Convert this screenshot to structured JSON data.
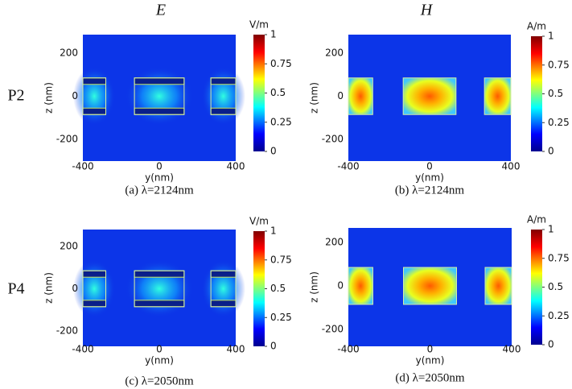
{
  "columns": [
    "E",
    "H"
  ],
  "rows": [
    "P2",
    "P4"
  ],
  "panels": [
    {
      "caption": "(a) λ=2124nm",
      "xlabel": "y(nm)",
      "ylabel": "z (nm)",
      "xticks": [
        -400,
        0,
        400
      ],
      "yticks": [
        200,
        0,
        -200
      ],
      "colorbar": {
        "unit": "V/m",
        "ticks": [
          1,
          0.75,
          0.5,
          0.25,
          0
        ]
      }
    },
    {
      "caption": "(b) λ=2124nm",
      "xlabel": "y(nm)",
      "ylabel": "z (nm)",
      "xticks": [
        -400,
        0,
        400
      ],
      "yticks": [
        200,
        0,
        -200
      ],
      "colorbar": {
        "unit": "A/m",
        "ticks": [
          1,
          0.75,
          0.5,
          0.25,
          0
        ]
      }
    },
    {
      "caption": "(c) λ=2050nm",
      "xlabel": "y(nm)",
      "ylabel": "z (nm)",
      "xticks": [
        -400,
        0,
        400
      ],
      "yticks": [
        200,
        0,
        -200
      ],
      "colorbar": {
        "unit": "V/m",
        "ticks": [
          1,
          0.75,
          0.5,
          0.25,
          0
        ]
      }
    },
    {
      "caption": "(d) λ=2050nm",
      "xlabel": "y(nm)",
      "ylabel": "z (nm)",
      "xticks": [
        -400,
        0,
        400
      ],
      "yticks": [
        200,
        0,
        -200
      ],
      "colorbar": {
        "unit": "A/m",
        "ticks": [
          1,
          0.75,
          0.5,
          0.25,
          0
        ]
      }
    }
  ]
}
